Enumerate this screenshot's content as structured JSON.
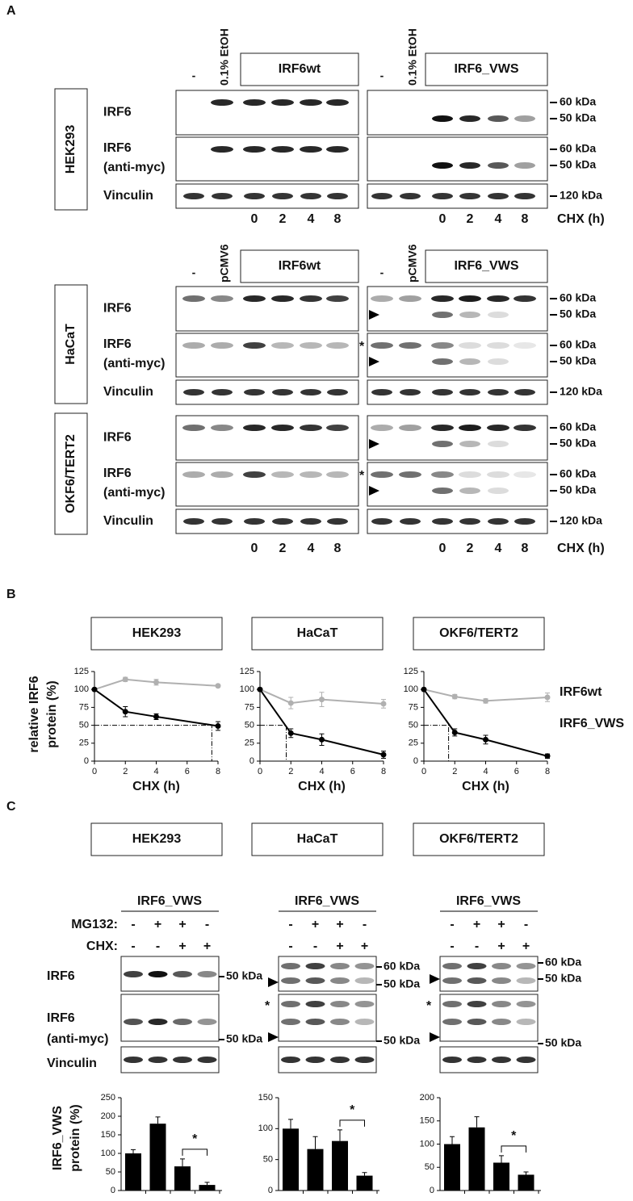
{
  "panel_labels": [
    "A",
    "B",
    "C"
  ],
  "panel_a": {
    "sections": [
      {
        "left": {
          "lanes": [
            "-",
            "0.1% EtOH"
          ],
          "construct": "IRF6wt"
        },
        "right": {
          "lanes": [
            "-",
            "0.1% EtOH"
          ],
          "construct": "IRF6_VWS"
        },
        "cell_lines": [
          {
            "name": "HEK293",
            "rows": [
              {
                "label": "IRF6",
                "markers": [
                  "60 kDa",
                  "50 kDa"
                ]
              },
              {
                "label": "IRF6",
                "sublabel": "(anti-myc)",
                "markers": [
                  "60 kDa",
                  "50 kDa"
                ]
              },
              {
                "label": "Vinculin",
                "markers": [
                  "120 kDa"
                ]
              }
            ]
          }
        ],
        "chx": {
          "times": [
            0,
            2,
            4,
            8
          ],
          "label": "CHX (h)"
        }
      },
      {
        "left": {
          "lanes": [
            "-",
            "pCMV6"
          ],
          "construct": "IRF6wt"
        },
        "right": {
          "lanes": [
            "-",
            "pCMV6"
          ],
          "construct": "IRF6_VWS"
        },
        "cell_lines": [
          {
            "name": "HaCaT",
            "rows": [
              {
                "label": "IRF6",
                "markers": [
                  "60 kDa",
                  "50 kDa"
                ]
              },
              {
                "label": "IRF6",
                "sublabel": "(anti-myc)",
                "markers": [
                  "60 kDa",
                  "50 kDa"
                ],
                "asterisk": "*"
              },
              {
                "label": "Vinculin",
                "markers": [
                  "120 kDa"
                ]
              }
            ]
          },
          {
            "name": "OKF6/TERT2",
            "rows": [
              {
                "label": "IRF6",
                "markers": [
                  "60 kDa",
                  "50 kDa"
                ]
              },
              {
                "label": "IRF6",
                "sublabel": "(anti-myc)",
                "markers": [
                  "60 kDa",
                  "50 kDa"
                ],
                "asterisk": "*"
              },
              {
                "label": "Vinculin",
                "markers": [
                  "120 kDa"
                ]
              }
            ]
          }
        ],
        "chx": {
          "times": [
            0,
            2,
            4,
            8
          ],
          "label": "CHX (h)"
        }
      }
    ]
  },
  "panel_c": {
    "rows": [
      {
        "label": "IRF6"
      },
      {
        "label": "IRF6",
        "sublabel": "(anti-myc)"
      },
      {
        "label": "Vinculin"
      }
    ]
  },
  "chart_data": [
    {
      "type": "line",
      "title": "HEK293",
      "x": [
        0,
        2,
        4,
        8
      ],
      "xlim": [
        0,
        8
      ],
      "xticks": [
        0,
        2,
        4,
        6,
        8
      ],
      "ylim": [
        0,
        125
      ],
      "yticks": [
        0,
        25,
        50,
        75,
        100,
        125
      ],
      "xlabel": "CHX (h)",
      "ylabel": [
        "relative IRF6",
        "protein (%)"
      ],
      "series": [
        {
          "color": "#b0b0b0",
          "values": [
            100,
            114,
            110,
            105
          ],
          "errors": [
            0,
            3,
            4,
            2
          ]
        },
        {
          "color": "#000000",
          "values": [
            100,
            69,
            62,
            49
          ],
          "errors": [
            0,
            7,
            4,
            6
          ]
        }
      ],
      "reference": {
        "x": 7.6,
        "y": 50
      }
    },
    {
      "type": "line",
      "title": "HaCaT",
      "x": [
        0,
        2,
        4,
        8
      ],
      "xlim": [
        0,
        8
      ],
      "xticks": [
        0,
        2,
        4,
        6,
        8
      ],
      "ylim": [
        0,
        125
      ],
      "yticks": [
        0,
        25,
        50,
        75,
        100,
        125
      ],
      "xlabel": "CHX (h)",
      "series": [
        {
          "color": "#b0b0b0",
          "values": [
            100,
            81,
            86,
            80
          ],
          "errors": [
            0,
            8,
            10,
            6
          ]
        },
        {
          "color": "#000000",
          "values": [
            100,
            39,
            30,
            9
          ],
          "errors": [
            0,
            6,
            8,
            5
          ]
        }
      ],
      "reference": {
        "x": 1.7,
        "y": 50
      }
    },
    {
      "type": "line",
      "title": "OKF6/TERT2",
      "x": [
        0,
        2,
        4,
        8
      ],
      "xlim": [
        0,
        8
      ],
      "xticks": [
        0,
        2,
        4,
        6,
        8
      ],
      "ylim": [
        0,
        125
      ],
      "yticks": [
        0,
        25,
        50,
        75,
        100,
        125
      ],
      "xlabel": "CHX (h)",
      "series": [
        {
          "name": "IRF6wt",
          "color": "#b0b0b0",
          "values": [
            100,
            90,
            84,
            89
          ],
          "errors": [
            0,
            3,
            3,
            6
          ]
        },
        {
          "name": "IRF6_VWS",
          "color": "#000000",
          "values": [
            100,
            40,
            30,
            7
          ],
          "errors": [
            0,
            5,
            6,
            3
          ]
        }
      ],
      "reference": {
        "x": 1.6,
        "y": 50
      }
    },
    {
      "type": "bar",
      "title": "HEK293",
      "group_label": "IRF6_VWS",
      "conditions": [
        {
          "name": "MG132:",
          "signs": [
            "-",
            "+",
            "+",
            "-"
          ]
        },
        {
          "name": "CHX:",
          "signs": [
            "-",
            "-",
            "+",
            "+"
          ]
        }
      ],
      "blot_markers": [
        "50 kDa",
        "50 kDa"
      ],
      "values": [
        100,
        180,
        65,
        15
      ],
      "errors": [
        10,
        18,
        20,
        7
      ],
      "color": "#000000",
      "ylim": [
        0,
        250
      ],
      "yticks": [
        0,
        50,
        100,
        150,
        200,
        250
      ],
      "ylabel": [
        "IRF6_VWS",
        "protein (%)"
      ],
      "significance": "*"
    },
    {
      "type": "bar",
      "title": "HaCaT",
      "group_label": "IRF6_VWS",
      "conditions": [
        {
          "signs": [
            "-",
            "+",
            "+",
            "-"
          ]
        },
        {
          "signs": [
            "-",
            "-",
            "+",
            "+"
          ]
        }
      ],
      "blot_markers": [
        "60 kDa",
        "50 kDa",
        "50 kDa"
      ],
      "blot_asterisk": "*",
      "values": [
        100,
        67,
        80,
        24
      ],
      "errors": [
        15,
        20,
        18,
        5
      ],
      "color": "#000000",
      "ylim": [
        0,
        150
      ],
      "yticks": [
        0,
        50,
        100,
        150
      ],
      "significance": "*"
    },
    {
      "type": "bar",
      "title": "OKF6/TERT2",
      "group_label": "IRF6_VWS",
      "conditions": [
        {
          "signs": [
            "-",
            "+",
            "+",
            "-"
          ]
        },
        {
          "signs": [
            "-",
            "-",
            "+",
            "+"
          ]
        }
      ],
      "blot_markers": [
        "60 kDa",
        "50 kDa",
        "50 kDa"
      ],
      "blot_asterisk": "*",
      "values": [
        100,
        136,
        60,
        34
      ],
      "errors": [
        16,
        23,
        15,
        6
      ],
      "color": "#000000",
      "ylim": [
        0,
        200
      ],
      "yticks": [
        0,
        50,
        100,
        150,
        200
      ],
      "significance": "*"
    }
  ]
}
